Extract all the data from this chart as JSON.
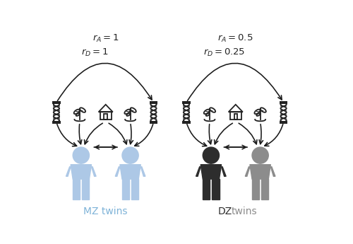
{
  "mz_label": "MZ twins",
  "dz_label": "DZ twins",
  "mz_rA": "$r_A = 1$",
  "mz_rD": "$r_D = 1$",
  "dz_rA": "$r_A = 0.5$",
  "dz_rD": "$r_D = 0.25$",
  "mz_color": "#adc8e6",
  "dz_color1": "#2d2d2d",
  "dz_color2": "#8c8c8c",
  "icon_color": "#222222",
  "arrow_color": "#1a1a1a",
  "bg_color": "#ffffff",
  "mz_label_color": "#7eb3d8",
  "dz_label1_color": "#2d2d2d",
  "dz_label2_color": "#8c8c8c"
}
